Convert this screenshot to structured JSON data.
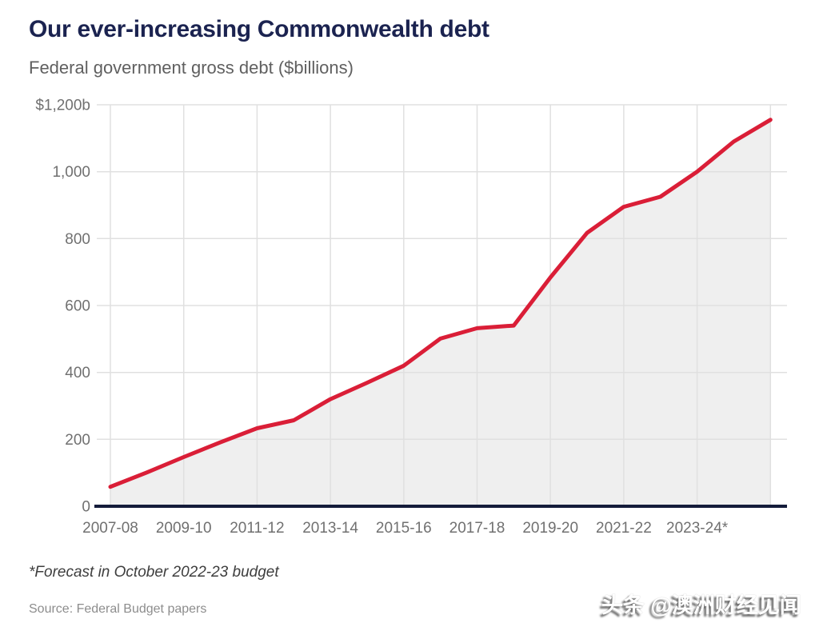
{
  "header": {
    "title": "Our ever-increasing Commonwealth debt",
    "subtitle": "Federal government gross debt ($billions)"
  },
  "chart_data": {
    "type": "area",
    "title": "Our ever-increasing Commonwealth debt",
    "subtitle": "Federal government gross debt ($billions)",
    "unit": "$billions",
    "x": [
      "2007-08",
      "2008-09",
      "2009-10",
      "2010-11",
      "2011-12",
      "2012-13",
      "2013-14",
      "2014-15",
      "2015-16",
      "2016-17",
      "2017-18",
      "2018-19",
      "2019-20",
      "2020-21",
      "2021-22",
      "2022-23",
      "2023-24",
      "2024-25",
      "2025-26"
    ],
    "values": [
      58,
      101,
      147,
      191,
      233,
      257,
      320,
      369,
      420,
      501,
      532,
      540,
      684,
      817,
      895,
      925,
      1000,
      1090,
      1155
    ],
    "x_tick_labels": [
      "2007-08",
      "2009-10",
      "2011-12",
      "2013-14",
      "2015-16",
      "2017-18",
      "2019-20",
      "2021-22",
      "2023-24*"
    ],
    "y_tick_labels": [
      "$1,200b",
      "1,000",
      "800",
      "600",
      "400",
      "200",
      "0"
    ],
    "y_tick_values": [
      1200,
      1000,
      800,
      600,
      400,
      200,
      0
    ],
    "ylim": [
      0,
      1200
    ],
    "grid": true,
    "legend": "none",
    "line_color": "#da1e37",
    "area_fill": "#efefef",
    "grid_color": "#e0e0e0",
    "axis_color": "#141c3a"
  },
  "footer": {
    "footnote": "*Forecast in October 2022-23 budget",
    "source": "Source: Federal Budget papers",
    "watermark": "头条 @澳洲财经见闻"
  },
  "colors": {
    "title": "#1b2350",
    "subtitle": "#606060",
    "tick_label": "#707070"
  }
}
